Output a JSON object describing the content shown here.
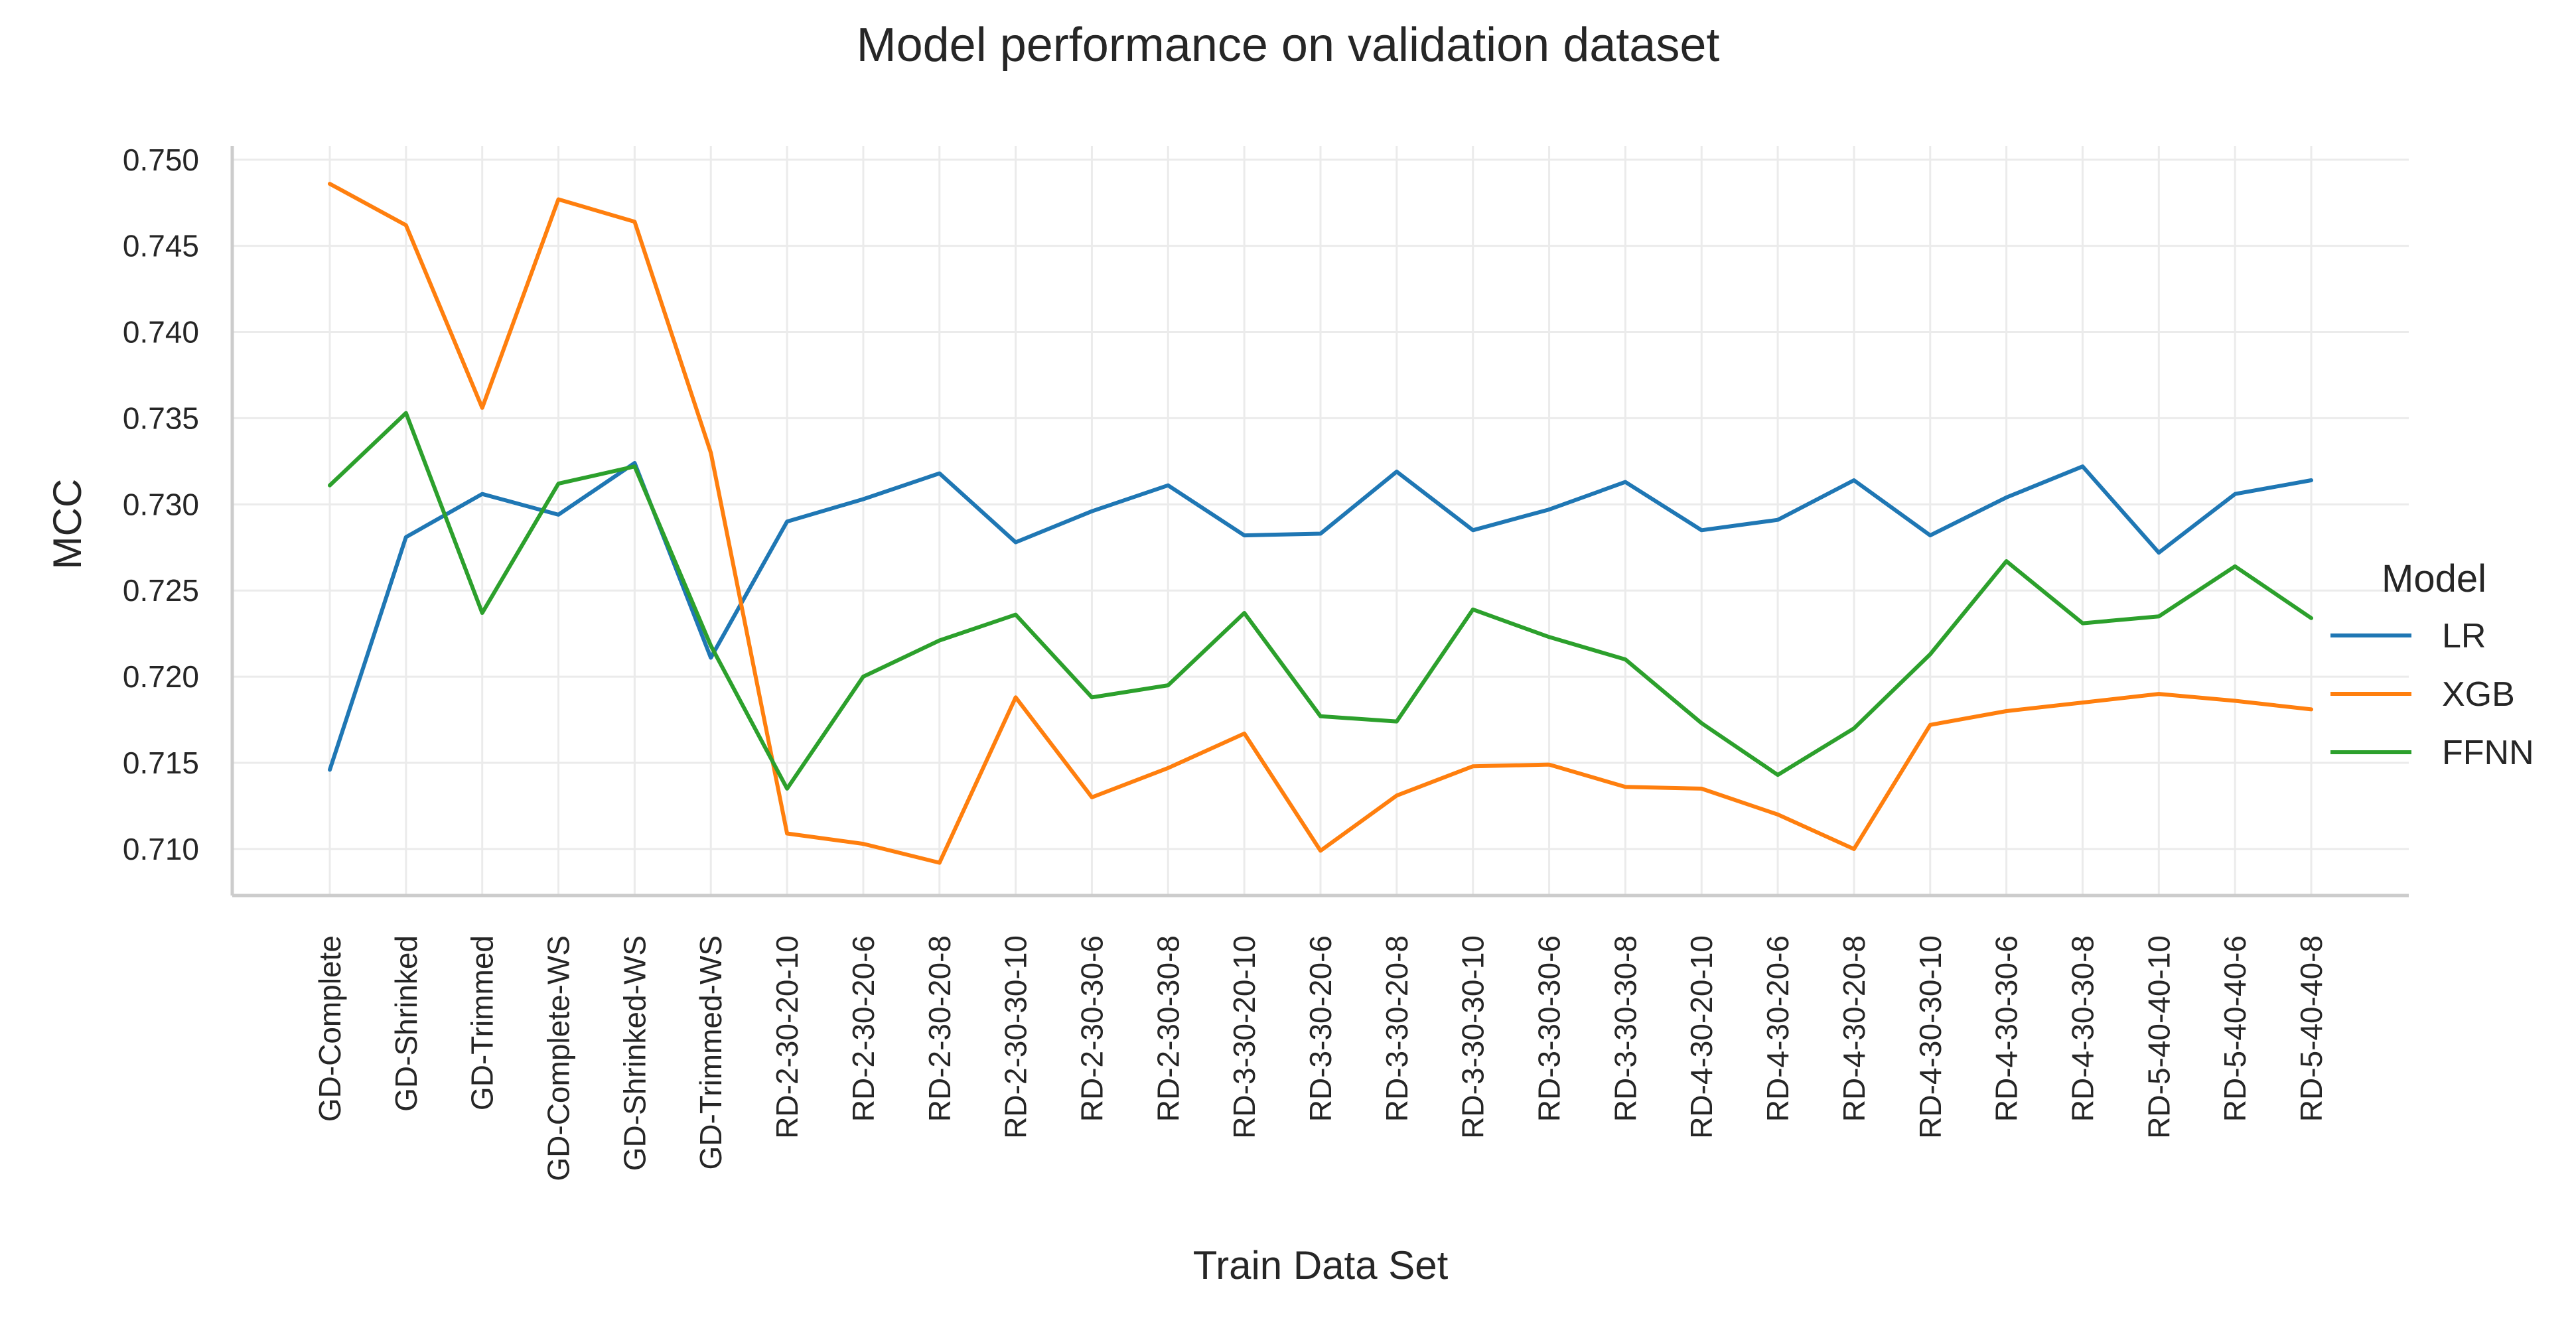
{
  "chart_data": {
    "type": "line",
    "title": "Model performance on validation dataset",
    "xlabel": "Train Data Set",
    "ylabel": "MCC",
    "categories": [
      "GD-Complete",
      "GD-Shrinked",
      "GD-Trimmed",
      "GD-Complete-WS",
      "GD-Shrinked-WS",
      "GD-Trimmed-WS",
      "RD-2-30-20-10",
      "RD-2-30-20-6",
      "RD-2-30-20-8",
      "RD-2-30-30-10",
      "RD-2-30-30-6",
      "RD-2-30-30-8",
      "RD-3-30-20-10",
      "RD-3-30-20-6",
      "RD-3-30-20-8",
      "RD-3-30-30-10",
      "RD-3-30-30-6",
      "RD-3-30-30-8",
      "RD-4-30-20-10",
      "RD-4-30-20-6",
      "RD-4-30-20-8",
      "RD-4-30-30-10",
      "RD-4-30-30-6",
      "RD-4-30-30-8",
      "RD-5-40-40-10",
      "RD-5-40-40-6",
      "RD-5-40-40-8"
    ],
    "ylim": [
      0.7073,
      0.7508
    ],
    "yticks": [
      "0.710",
      "0.715",
      "0.720",
      "0.725",
      "0.730",
      "0.735",
      "0.740",
      "0.745",
      "0.750"
    ],
    "ytick_values": [
      0.71,
      0.715,
      0.72,
      0.725,
      0.73,
      0.735,
      0.74,
      0.745,
      0.75
    ],
    "grid": true,
    "legend": {
      "title": "Model",
      "position": "right"
    },
    "series": [
      {
        "name": "LR",
        "color": "#1f77b4",
        "values": [
          0.7146,
          0.7281,
          0.7306,
          0.7294,
          0.7324,
          0.7211,
          0.729,
          0.7303,
          0.7318,
          0.7278,
          0.7296,
          0.7311,
          0.7282,
          0.7283,
          0.7319,
          0.7285,
          0.7297,
          0.7313,
          0.7285,
          0.7291,
          0.7314,
          0.7282,
          0.7304,
          0.7322,
          0.7272,
          0.7306,
          0.7314
        ]
      },
      {
        "name": "XGB",
        "color": "#ff7f0e",
        "values": [
          0.7486,
          0.7462,
          0.7356,
          0.7477,
          0.7464,
          0.733,
          0.7109,
          0.7103,
          0.7092,
          0.7188,
          0.713,
          0.7147,
          0.7167,
          0.7099,
          0.7131,
          0.7148,
          0.7149,
          0.7136,
          0.7135,
          0.712,
          0.71,
          0.7172,
          0.718,
          0.7185,
          0.719,
          0.7186,
          0.7181
        ]
      },
      {
        "name": "FFNN",
        "color": "#2ca02c",
        "values": [
          0.7311,
          0.7353,
          0.7237,
          0.7312,
          0.7322,
          0.7218,
          0.7135,
          0.72,
          0.7221,
          0.7236,
          0.7188,
          0.7195,
          0.7237,
          0.7177,
          0.7174,
          0.7239,
          0.7223,
          0.721,
          0.7173,
          0.7143,
          0.717,
          0.7213,
          0.7267,
          0.7231,
          0.7235,
          0.7264,
          0.7234
        ]
      }
    ]
  }
}
